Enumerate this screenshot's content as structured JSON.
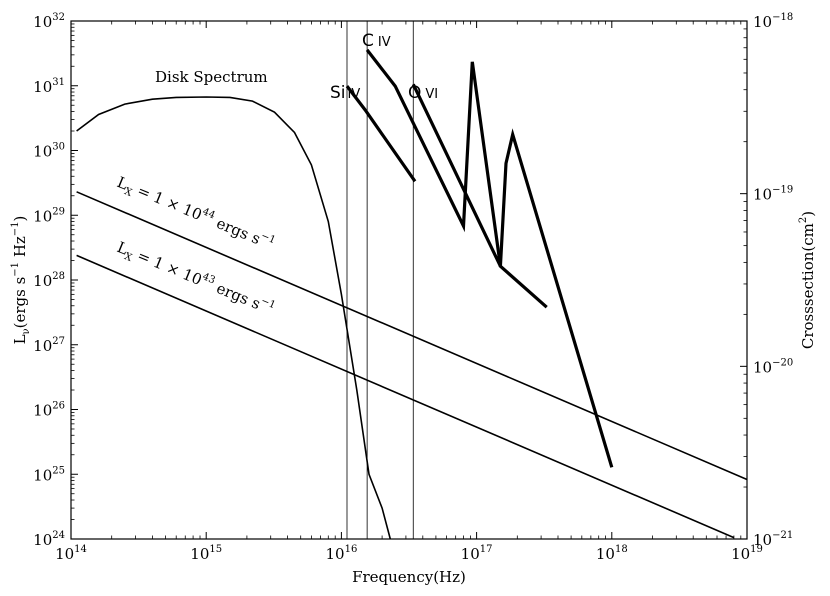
{
  "chart_data": {
    "type": "line",
    "xlabel": "Frequency(Hz)",
    "ylabel": "L",
    "ylabel_sub": "ν",
    "ylabel_units": "(ergs s",
    "ylabel_units2": " Hz",
    "ylabel_units3": ")",
    "ylabel_exp": "−1",
    "y2label": "Crosssection(cm",
    "y2label_exp": "2",
    "y2label_close": ")",
    "x_scale": "log",
    "y_scale": "log",
    "y2_scale": "log",
    "xlim": [
      100000000000000.0,
      1e+19
    ],
    "ylim": [
      1e+24,
      1e+32
    ],
    "y2lim": [
      1e-21,
      1e-18
    ],
    "x_ticks": [
      {
        "base": "10",
        "exp": "14"
      },
      {
        "base": "10",
        "exp": "15"
      },
      {
        "base": "10",
        "exp": "16"
      },
      {
        "base": "10",
        "exp": "17"
      },
      {
        "base": "10",
        "exp": "18"
      },
      {
        "base": "10",
        "exp": "19"
      }
    ],
    "y_ticks": [
      {
        "base": "10",
        "exp": "24"
      },
      {
        "base": "10",
        "exp": "25"
      },
      {
        "base": "10",
        "exp": "26"
      },
      {
        "base": "10",
        "exp": "27"
      },
      {
        "base": "10",
        "exp": "28"
      },
      {
        "base": "10",
        "exp": "29"
      },
      {
        "base": "10",
        "exp": "30"
      },
      {
        "base": "10",
        "exp": "31"
      },
      {
        "base": "10",
        "exp": "32"
      }
    ],
    "y2_ticks": [
      {
        "base": "10",
        "exp": "−21"
      },
      {
        "base": "10",
        "exp": "−20"
      },
      {
        "base": "10",
        "exp": "−19"
      },
      {
        "base": "10",
        "exp": "−18"
      }
    ],
    "series": [
      {
        "name": "Disk Spectrum",
        "axis": "left",
        "x": [
          110000000000000.0,
          160000000000000.0,
          250000000000000.0,
          400000000000000.0,
          600000000000000.0,
          1000000000000000.0,
          1500000000000000.0,
          2200000000000000.0,
          3200000000000000.0,
          4500000000000000.0,
          6000000000000000.0,
          8000000000000000.0,
          1e+16,
          1.3e+16,
          1.6e+16,
          2e+16,
          2.3e+16
        ],
        "y": [
          2e+30,
          3.6e+30,
          5.2e+30,
          6.2e+30,
          6.6e+30,
          6.7e+30,
          6.6e+30,
          5.8e+30,
          3.9e+30,
          1.9e+30,
          6e+29,
          8e+28,
          6e+27,
          2e+26,
          1e+25,
          3e+24,
          1e+24
        ]
      },
      {
        "name": "L_X = 1 × 10^44 ergs s^-1",
        "axis": "left",
        "x": [
          110000000000000.0,
          1e+19
        ],
        "y": [
          2.3e+29,
          8.3e+24
        ]
      },
      {
        "name": "L_X = 1 × 10^43 ergs s^-1",
        "axis": "left",
        "x": [
          110000000000000.0,
          8e+18
        ],
        "y": [
          2.4e+28,
          1.05e+24
        ]
      },
      {
        "name": "Si IV",
        "axis": "right",
        "x": [
          1.1e+16,
          1.5e+16,
          3.5e+16
        ],
        "y": [
          4.2e-19,
          3.05e-19,
          1.18e-19
        ]
      },
      {
        "name": "C IV",
        "axis": "right",
        "x": [
          1.55e+16,
          2.5e+16,
          8e+16,
          9.3e+16,
          1.5e+17,
          3.3e+17
        ],
        "y": [
          6.8e-19,
          4.2e-19,
          6.5e-20,
          5.8e-19,
          3.8e-20,
          2.2e-20
        ]
      },
      {
        "name": "O VI",
        "axis": "right",
        "x": [
          3.4e+16,
          1.5e+17,
          1.65e+17,
          1.85e+17,
          1e+18
        ],
        "y": [
          4.3e-19,
          3.8e-20,
          1.5e-19,
          2.2e-19,
          2.6e-21
        ]
      }
    ],
    "edges_x": [
      1.1e+16,
      1.55e+16,
      3.4e+16
    ],
    "labels": {
      "disk": "Disk Spectrum",
      "si_elem": "Si",
      "si_ion": "IV",
      "c_elem": "C",
      "c_ion": "IV",
      "o_elem": "O",
      "o_ion": "VI",
      "lx44_prefix": "L",
      "lx44_sub": "X",
      "lx44_mid": " = 1 × 10",
      "lx44_exp": "44",
      "lx44_units": " ergs s",
      "lx44_units_exp": "−1",
      "lx43_prefix": "L",
      "lx43_sub": "X",
      "lx43_mid": " = 1 × 10",
      "lx43_exp": "43",
      "lx43_units": " ergs s",
      "lx43_units_exp": "−1"
    },
    "grid": false,
    "legend": "none"
  }
}
